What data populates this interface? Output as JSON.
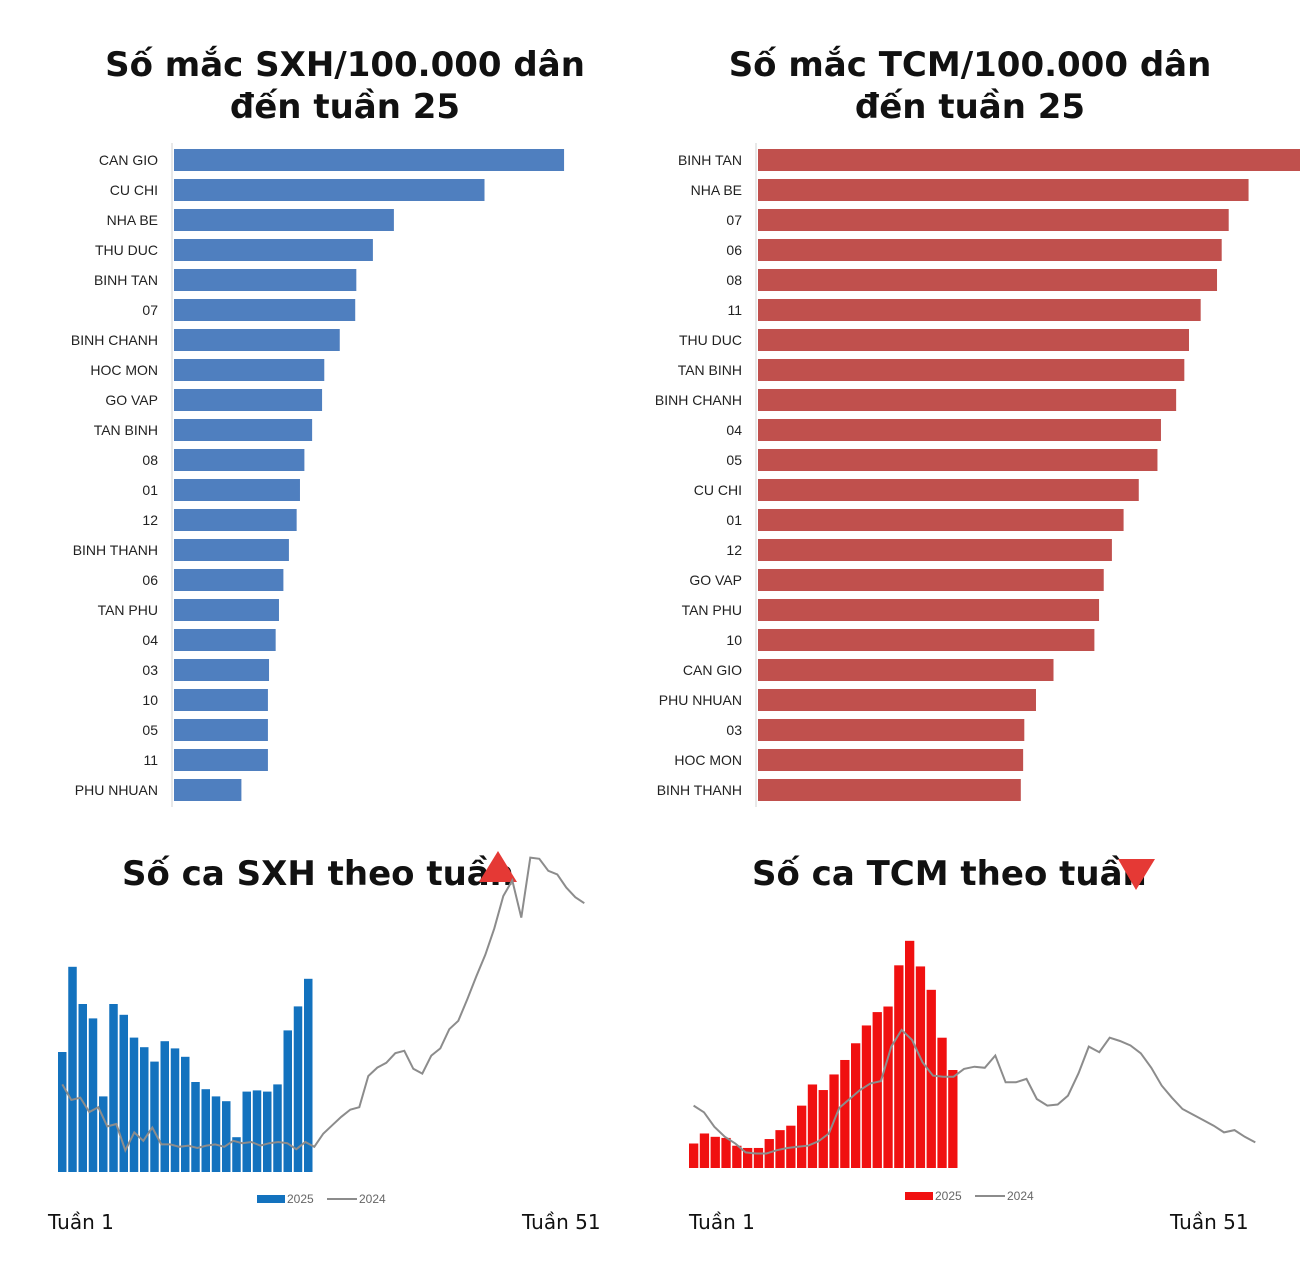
{
  "colors": {
    "sxh": "#4f7fbf",
    "tcm": "#c0504d",
    "sxh_weekly": "#1372be",
    "tcm_weekly": "#f01010",
    "line_2024": "#8c8c8c",
    "up": "#e53935",
    "down": "#e53935"
  },
  "sxh_rate": {
    "title_line1": "Số mắc SXH/100.000 dân",
    "title_line2": "đến tuần 25",
    "chart_data": {
      "type": "bar",
      "orientation": "horizontal",
      "categories": [
        "CAN GIO",
        "CU CHI",
        "NHA BE",
        "THU DUC",
        "BINH TAN",
        "07",
        "BINH CHANH",
        "HOC MON",
        "GO VAP",
        "TAN BINH",
        "08",
        "01",
        "12",
        "BINH THANH",
        "06",
        "TAN PHU",
        "04",
        "03",
        "10",
        "05",
        "11",
        "PHU NHUAN"
      ],
      "values": [
        353,
        281,
        199,
        180,
        165,
        164,
        150,
        136,
        134,
        125,
        118,
        114,
        111,
        104,
        99,
        95,
        92,
        86,
        85,
        85,
        85,
        61
      ],
      "xlim": [
        0,
        400
      ]
    }
  },
  "tcm_rate": {
    "title_line1": "Số mắc TCM/100.000 dân",
    "title_line2": "đến tuần 25",
    "chart_data": {
      "type": "bar",
      "orientation": "horizontal",
      "categories": [
        "BINH TAN",
        "NHA BE",
        "07",
        "06",
        "08",
        "11",
        "THU DUC",
        "TAN BINH",
        "BINH CHANH",
        "04",
        "05",
        "CU CHI",
        "01",
        "12",
        "GO VAP",
        "TAN PHU",
        "10",
        "CAN GIO",
        "PHU NHUAN",
        "03",
        "HOC MON",
        "BINH THANH"
      ],
      "values": [
        467,
        420,
        403,
        397,
        393,
        379,
        369,
        365,
        358,
        345,
        342,
        326,
        313,
        303,
        296,
        292,
        288,
        253,
        238,
        228,
        227,
        225
      ],
      "xlim": [
        0,
        500
      ]
    }
  },
  "sxh_weekly": {
    "title": "Số ca SXH theo tuần",
    "trend": "up",
    "week_start": "Tuần 1",
    "week_end": "Tuần 51",
    "chart_data": {
      "type": "bar",
      "series": [
        {
          "name": "2025",
          "kind": "bar",
          "values": [
            100,
            171,
            140,
            128,
            63,
            140,
            131,
            112,
            104,
            92,
            109,
            103,
            96,
            75,
            69,
            63,
            59,
            29,
            67,
            68,
            67,
            73,
            118,
            138,
            161
          ]
        },
        {
          "name": "2024",
          "kind": "line",
          "values": [
            73,
            60,
            62,
            50,
            54,
            38,
            40,
            18,
            33,
            26,
            37,
            23,
            23,
            21,
            22,
            20,
            22,
            23,
            21,
            26,
            24,
            25,
            22,
            24,
            25,
            24,
            19,
            25,
            21,
            32,
            39,
            46,
            52,
            54,
            80,
            87,
            91,
            99,
            101,
            86,
            82,
            97,
            103,
            119,
            126,
            144,
            163,
            181,
            203,
            230,
            243,
            212,
            262,
            261,
            251,
            248,
            237,
            229,
            224
          ]
        }
      ],
      "ylim": [
        0,
        250
      ]
    }
  },
  "tcm_weekly": {
    "title": "Số ca TCM theo tuần",
    "trend": "down",
    "week_start": "Tuần 1",
    "week_end": "Tuần 51",
    "chart_data": {
      "type": "bar",
      "series": [
        {
          "name": "2025",
          "kind": "bar",
          "values": [
            22,
            31,
            28,
            27,
            20,
            18,
            18,
            26,
            34,
            38,
            56,
            75,
            70,
            84,
            97,
            112,
            128,
            140,
            145,
            182,
            204,
            181,
            160,
            117,
            88
          ]
        },
        {
          "name": "2024",
          "kind": "line",
          "values": [
            56,
            50,
            37,
            28,
            22,
            14,
            13,
            13,
            16,
            18,
            19,
            20,
            24,
            31,
            54,
            62,
            70,
            76,
            78,
            109,
            124,
            115,
            95,
            83,
            82,
            82,
            89,
            91,
            90,
            101,
            77,
            77,
            80,
            62,
            56,
            57,
            65,
            85,
            109,
            104,
            117,
            114,
            110,
            103,
            90,
            74,
            63,
            53,
            48,
            43,
            38,
            32,
            34,
            28,
            23
          ]
        }
      ],
      "ylim": [
        0,
        220
      ]
    }
  }
}
